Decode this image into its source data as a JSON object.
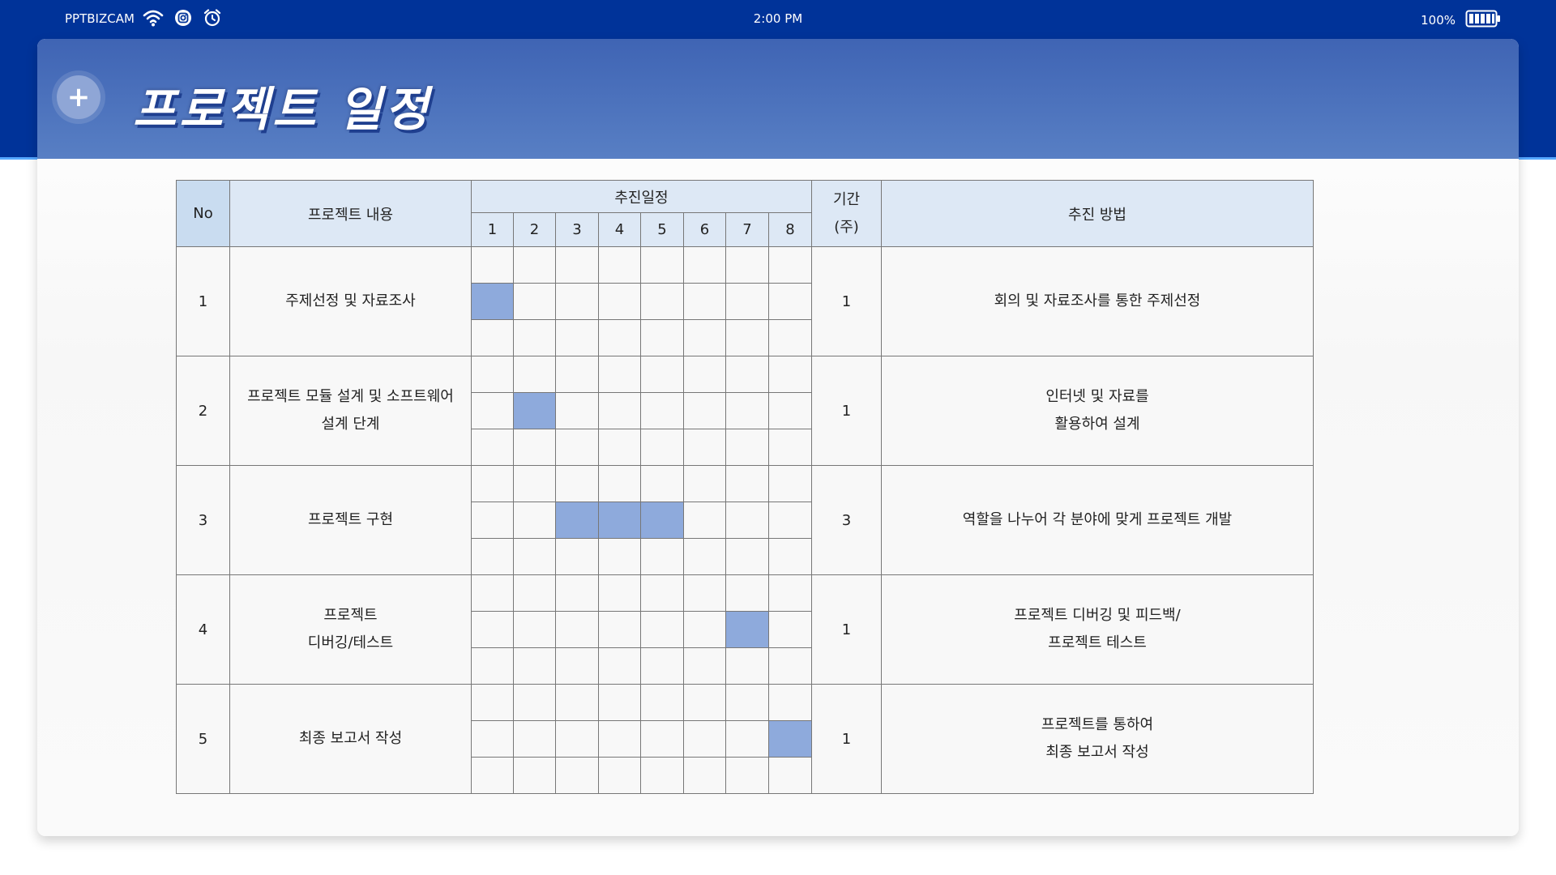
{
  "status_bar": {
    "carrier": "PPTBIZCAM",
    "time": "2:00 PM",
    "battery": "100%",
    "icons": [
      "wifi-icon",
      "instagram-icon",
      "alarm-icon",
      "battery-icon"
    ]
  },
  "header": {
    "add_button_label": "+",
    "title": "프로젝트 일정"
  },
  "table": {
    "headers": {
      "no": "No",
      "content": "프로젝트 내용",
      "schedule": "추진일정",
      "weeks": [
        "1",
        "2",
        "3",
        "4",
        "5",
        "6",
        "7",
        "8"
      ],
      "duration_line1": "기간",
      "duration_line2": "(주)",
      "method": "추진 방법"
    },
    "rows": [
      {
        "no": "1",
        "content": [
          "주제선정 및 자료조사"
        ],
        "filled_weeks": [
          1
        ],
        "duration": "1",
        "method": [
          "회의 및 자료조사를 통한 주제선정"
        ]
      },
      {
        "no": "2",
        "content": [
          "프로젝트 모듈 설계 및 소프트웨어",
          "설계 단계"
        ],
        "filled_weeks": [
          2
        ],
        "duration": "1",
        "method": [
          "인터넷 및 자료를",
          "활용하여 설계"
        ]
      },
      {
        "no": "3",
        "content": [
          "프로젝트 구현"
        ],
        "filled_weeks": [
          3,
          4,
          5
        ],
        "duration": "3",
        "method": [
          "역할을 나누어 각 분야에 맞게 프로젝트 개발"
        ]
      },
      {
        "no": "4",
        "content": [
          "프로젝트",
          "디버깅/테스트"
        ],
        "filled_weeks": [
          7
        ],
        "duration": "1",
        "method": [
          "프로젝트 디버깅 및 피드백/",
          "프로젝트 테스트"
        ]
      },
      {
        "no": "5",
        "content": [
          "최종 보고서 작성"
        ],
        "filled_weeks": [
          8
        ],
        "duration": "1",
        "method": [
          "프로젝트를 통하여",
          "최종 보고서 작성"
        ]
      }
    ]
  },
  "colors": {
    "top_band": "#003399",
    "header_gradient_top": "#3f64b4",
    "header_gradient_bottom": "#587fc4",
    "gantt_fill": "#8eaadc",
    "table_header": "#dde8f5"
  }
}
